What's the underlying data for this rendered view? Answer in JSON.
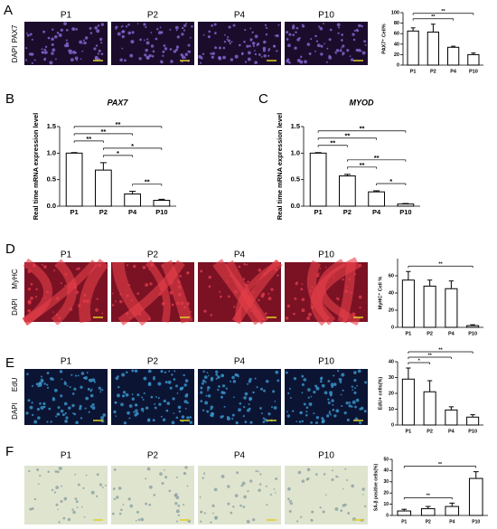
{
  "figure": {
    "panel_letters": [
      "A",
      "B",
      "C",
      "D",
      "E",
      "F"
    ],
    "image_rows": [
      {
        "columns": [
          "P1",
          "P2",
          "P4",
          "P10"
        ],
        "stains": [
          "PAX7",
          "DAPI"
        ]
      },
      {
        "columns": [
          "P1",
          "P2",
          "P4",
          "P10"
        ],
        "stains": [
          "MyHC",
          "DAPI"
        ]
      },
      {
        "columns": [
          "P1",
          "P2",
          "P4",
          "P10"
        ],
        "stains": [
          "EdU",
          "DAPI"
        ]
      },
      {
        "columns": [
          "P1",
          "P2",
          "P4",
          "P10"
        ]
      }
    ]
  },
  "chart_data": [
    {
      "type": "bar",
      "y_label": "PAX7⁺ Cell%",
      "categories": [
        "P1",
        "P2",
        "P4",
        "P10"
      ],
      "values": [
        65,
        63,
        34,
        20
      ],
      "errors": [
        6,
        15,
        2,
        3
      ],
      "color": "#ffffff",
      "ylim": [
        0,
        100
      ],
      "yticks": [
        0,
        20,
        40,
        60,
        80,
        100
      ],
      "significance": [
        {
          "from": "P1",
          "to": "P4",
          "label": "**"
        },
        {
          "from": "P1",
          "to": "P10",
          "label": "**"
        }
      ]
    },
    {
      "type": "bar",
      "title": "PAX7",
      "y_label": "Real time mRNA expression level",
      "categories": [
        "P1",
        "P2",
        "P4",
        "P10"
      ],
      "values": [
        1.0,
        0.68,
        0.23,
        0.11
      ],
      "errors": [
        0.01,
        0.14,
        0.05,
        0.02
      ],
      "color": "#ffffff",
      "ylim": [
        0,
        1.5
      ],
      "yticks": [
        {
          "value": 0,
          "label": "0.0"
        },
        {
          "value": 0.5,
          "label": "0.5"
        },
        {
          "value": 1,
          "label": "1.0"
        },
        {
          "value": 1.5,
          "label": "1.5"
        }
      ],
      "significance": [
        {
          "from": "P4",
          "to": "P10",
          "label": "**"
        },
        {
          "from": "P2",
          "to": "P4",
          "label": "*"
        },
        {
          "from": "P2",
          "to": "P10",
          "label": "*"
        },
        {
          "from": "P1",
          "to": "P2",
          "label": "**"
        },
        {
          "from": "P1",
          "to": "P4",
          "label": "**"
        },
        {
          "from": "P1",
          "to": "P10",
          "label": "**"
        }
      ]
    },
    {
      "type": "bar",
      "title": "MYOD",
      "y_label": "Real time mRNA expression level",
      "categories": [
        "P1",
        "P2",
        "P4",
        "P10"
      ],
      "values": [
        1.0,
        0.57,
        0.27,
        0.04
      ],
      "errors": [
        0.01,
        0.03,
        0.02,
        0.01
      ],
      "color": "#ffffff",
      "ylim": [
        0,
        1.5
      ],
      "yticks": [
        {
          "value": 0,
          "label": "0.0"
        },
        {
          "value": 0.5,
          "label": "0.5"
        },
        {
          "value": 1,
          "label": "1.0"
        },
        {
          "value": 1.5,
          "label": "1.5"
        }
      ],
      "significance": [
        {
          "from": "P4",
          "to": "P10",
          "label": "*"
        },
        {
          "from": "P2",
          "to": "P4",
          "label": "**"
        },
        {
          "from": "P2",
          "to": "P10",
          "label": "**"
        },
        {
          "from": "P1",
          "to": "P2",
          "label": "**"
        },
        {
          "from": "P1",
          "to": "P4",
          "label": "**"
        },
        {
          "from": "P1",
          "to": "P10",
          "label": "**"
        }
      ]
    },
    {
      "type": "bar",
      "y_label": "MyHC⁺ Cell %",
      "categories": [
        "P1",
        "P2",
        "P4",
        "P10"
      ],
      "values": [
        55,
        48,
        45,
        2
      ],
      "errors": [
        10,
        7,
        9,
        1
      ],
      "color": "#ffffff",
      "ylim": [
        0,
        80
      ],
      "yticks": [
        0,
        20,
        40,
        60
      ],
      "significance": [
        {
          "from": "P1",
          "to": "P10",
          "label": "**"
        }
      ]
    },
    {
      "type": "bar",
      "y_label": "EdU+ cells(%)",
      "categories": [
        "P1",
        "P2",
        "P4",
        "P10"
      ],
      "values": [
        29,
        21,
        9.5,
        5
      ],
      "errors": [
        7,
        7,
        2,
        1.5
      ],
      "color": "#ffffff",
      "ylim": [
        0,
        40
      ],
      "yticks": [
        0,
        10,
        20,
        30,
        40
      ],
      "significance": [
        {
          "from": "P1",
          "to": "P2",
          "label": "*"
        },
        {
          "from": "P1",
          "to": "P4",
          "label": "**"
        },
        {
          "from": "P1",
          "to": "P10",
          "label": "**"
        }
      ]
    },
    {
      "type": "bar",
      "y_label": "SA-β positive cells(%)",
      "categories": [
        "P1",
        "P2",
        "P4",
        "P10"
      ],
      "values": [
        4,
        6,
        8,
        33
      ],
      "errors": [
        1.5,
        2,
        3,
        6
      ],
      "color": "#ffffff",
      "ylim": [
        0,
        50
      ],
      "yticks": [
        0,
        10,
        20,
        30,
        40,
        50
      ],
      "significance": [
        {
          "from": "P1",
          "to": "P4",
          "label": "**"
        },
        {
          "from": "P1",
          "to": "P10",
          "label": "**"
        }
      ]
    }
  ]
}
